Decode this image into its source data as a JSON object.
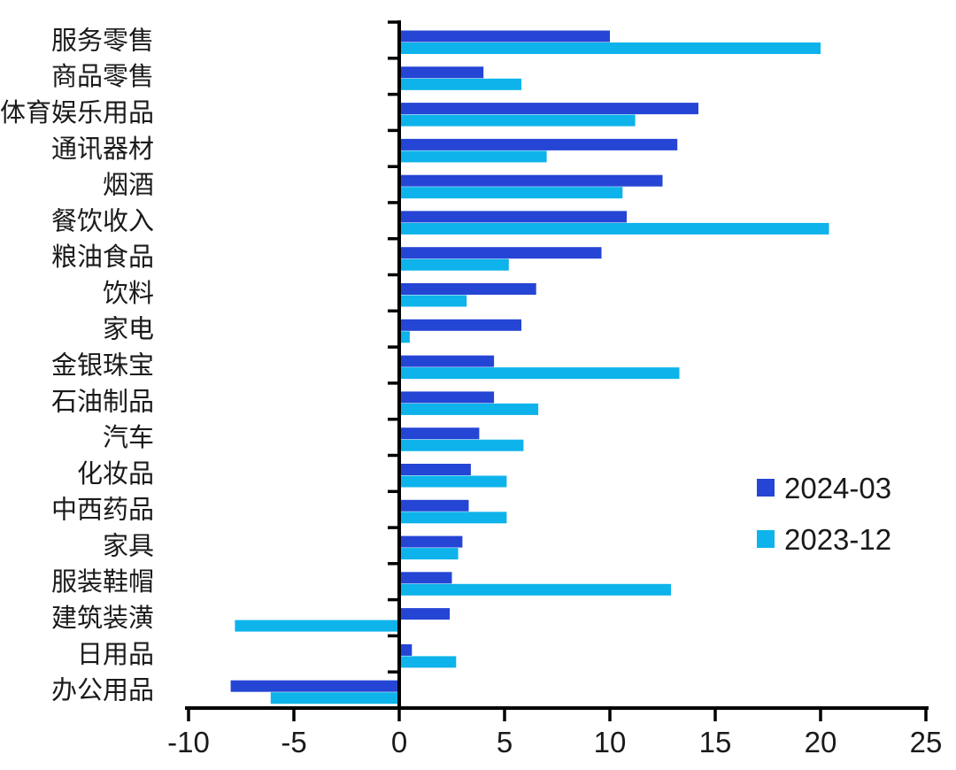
{
  "figure": {
    "background": "#ffffff",
    "axis_color": "#000000",
    "text_color": "#1a1a1a"
  },
  "legend": {
    "items": [
      {
        "label": "2024-03",
        "color": "#2545D4"
      },
      {
        "label": "2023-12",
        "color": "#0DB3EA"
      }
    ]
  },
  "chart_data": {
    "type": "bar",
    "orientation": "horizontal",
    "title": "",
    "xlabel": "",
    "ylabel": "",
    "xlim": [
      -10,
      25
    ],
    "xticks": [
      -10,
      -5,
      0,
      5,
      10,
      15,
      20,
      25
    ],
    "grid": false,
    "legend_position": "middle-right",
    "categories": [
      "服务零售",
      "商品零售",
      "体育娱乐用品",
      "通讯器材",
      "烟酒",
      "餐饮收入",
      "粮油食品",
      "饮料",
      "家电",
      "金银珠宝",
      "石油制品",
      "汽车",
      "化妆品",
      "中西药品",
      "家具",
      "服装鞋帽",
      "建筑装潢",
      "日用品",
      "办公用品"
    ],
    "series": [
      {
        "name": "2024-03",
        "color": "#2545D4",
        "values": [
          10.0,
          4.0,
          14.2,
          13.2,
          12.5,
          10.8,
          9.6,
          6.5,
          5.8,
          4.5,
          4.5,
          3.8,
          3.4,
          3.3,
          3.0,
          2.5,
          2.4,
          0.6,
          -8.0
        ]
      },
      {
        "name": "2023-12",
        "color": "#0DB3EA",
        "values": [
          20.0,
          5.8,
          11.2,
          7.0,
          10.6,
          20.4,
          5.2,
          3.2,
          0.5,
          13.3,
          6.6,
          5.9,
          5.1,
          5.1,
          2.8,
          12.9,
          -7.8,
          2.7,
          -6.1
        ]
      }
    ]
  }
}
